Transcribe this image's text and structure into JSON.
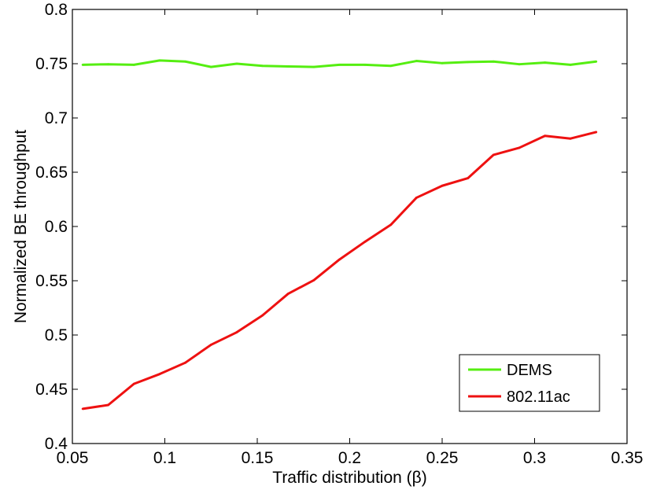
{
  "chart_data": {
    "type": "line",
    "xlabel": "Traffic distribution (β)",
    "ylabel": "Normalized BE throughput",
    "xlim": [
      0.05,
      0.35
    ],
    "ylim": [
      0.4,
      0.8
    ],
    "x_ticks": [
      0.05,
      0.1,
      0.15,
      0.2,
      0.25,
      0.3,
      0.35
    ],
    "x_tick_labels": [
      "0.05",
      "0.1",
      "0.15",
      "0.2",
      "0.25",
      "0.3",
      "0.35"
    ],
    "y_ticks": [
      0.4,
      0.45,
      0.5,
      0.55,
      0.6,
      0.65,
      0.7,
      0.75,
      0.8
    ],
    "y_tick_labels": [
      "0.4",
      "0.45",
      "0.5",
      "0.55",
      "0.6",
      "0.65",
      "0.7",
      "0.75",
      "0.8"
    ],
    "grid": false,
    "legend_position": "bottom-right",
    "x": [
      0.0556,
      0.0694,
      0.0833,
      0.0972,
      0.1111,
      0.125,
      0.1389,
      0.1528,
      0.1667,
      0.1806,
      0.1944,
      0.2083,
      0.2222,
      0.2361,
      0.25,
      0.2639,
      0.2778,
      0.2917,
      0.3056,
      0.3194,
      0.3333
    ],
    "series": [
      {
        "name": "DEMS",
        "color": "#55ee11",
        "values": [
          0.749,
          0.7495,
          0.749,
          0.753,
          0.752,
          0.747,
          0.75,
          0.748,
          0.7475,
          0.747,
          0.749,
          0.749,
          0.748,
          0.7525,
          0.7505,
          0.7515,
          0.752,
          0.7495,
          0.751,
          0.749,
          0.752
        ]
      },
      {
        "name": "802.11ac",
        "color": "#ee1111",
        "values": [
          0.432,
          0.4355,
          0.455,
          0.464,
          0.4745,
          0.491,
          0.5025,
          0.518,
          0.538,
          0.5505,
          0.5695,
          0.586,
          0.6015,
          0.6265,
          0.6375,
          0.6445,
          0.666,
          0.6725,
          0.6835,
          0.681,
          0.687
        ]
      }
    ]
  }
}
